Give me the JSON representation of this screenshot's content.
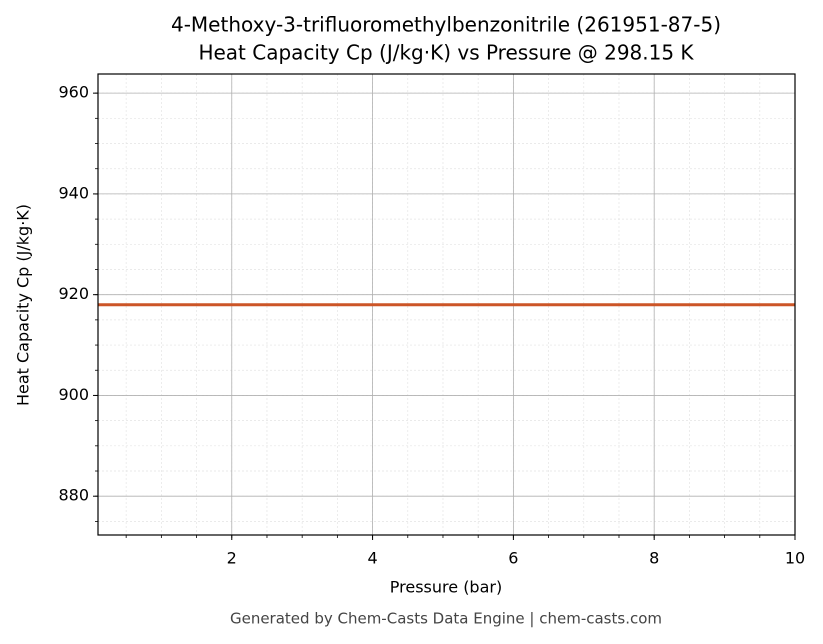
{
  "chart_data": {
    "type": "line",
    "title": "4-Methoxy-3-trifluoromethylbenzonitrile (261951-87-5)",
    "subtitle": "Heat Capacity Cp (J/kg·K) vs Pressure @ 298.15 K",
    "x_label": "Pressure (bar)",
    "y_label": "Heat Capacity Cp (J/kg·K)",
    "footer": "Generated by Chem-Casts Data Engine | chem-casts.com",
    "x": [
      0.1,
      10
    ],
    "series": [
      {
        "name": "Cp",
        "color": "#cc5527",
        "values": [
          918,
          918
        ]
      }
    ],
    "xlim": [
      0.1,
      10
    ],
    "xticks": [
      2,
      4,
      6,
      8,
      10
    ],
    "ylim": [
      872.3,
      963.8
    ],
    "yticks": [
      880,
      900,
      920,
      940,
      960
    ],
    "grid": true,
    "minor_grid": true
  }
}
